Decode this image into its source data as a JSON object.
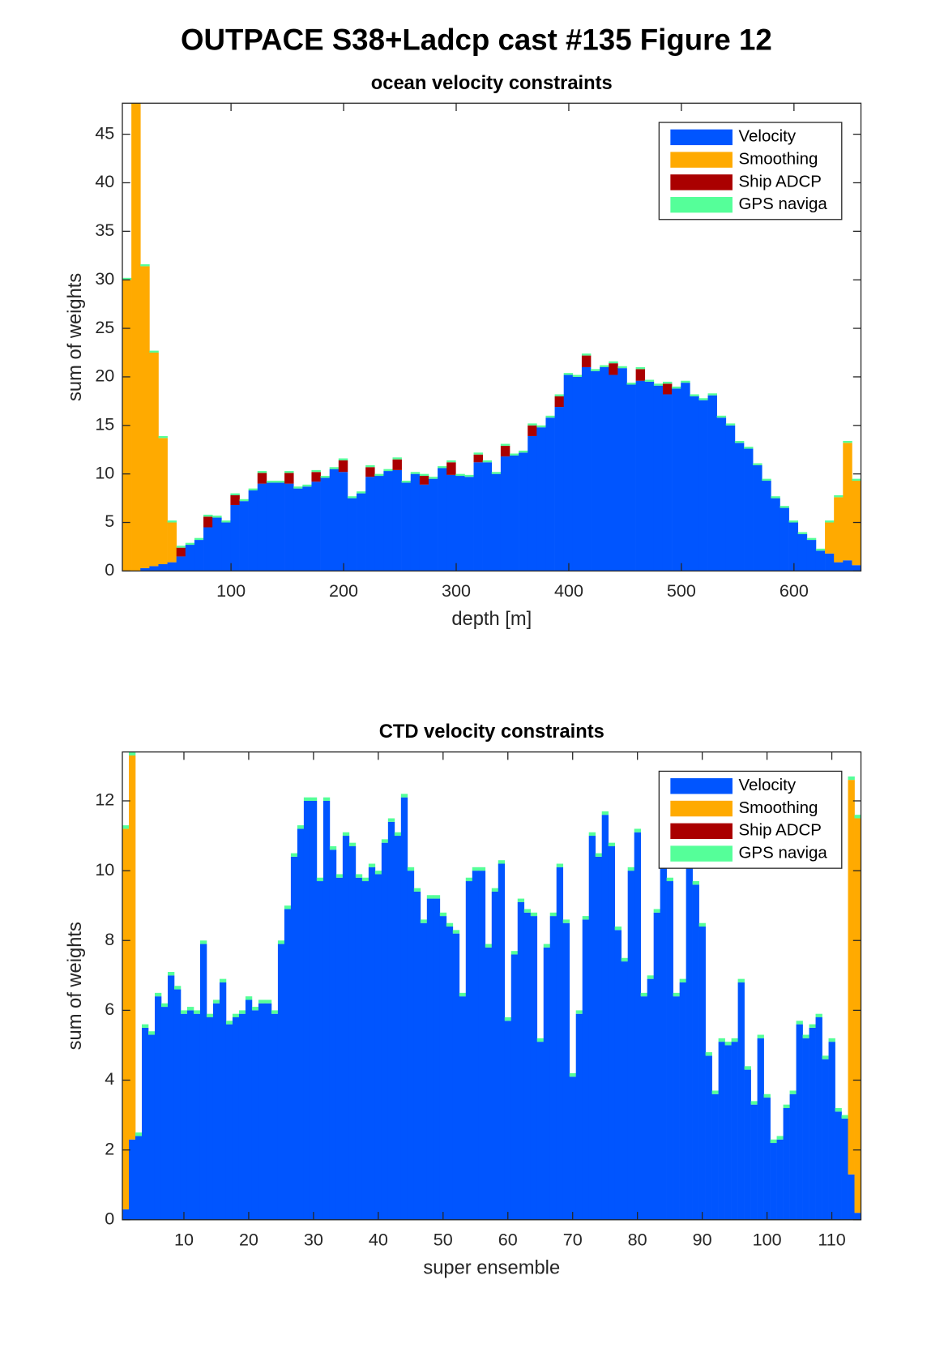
{
  "title": "OUTPACE S38+Ladcp cast #135  Figure 12",
  "chart_data": [
    {
      "type": "bar",
      "stacked": true,
      "title": "ocean velocity constraints",
      "x_label": "depth [m]",
      "y_label": "sum of weights",
      "x": [
        7.5,
        15.5,
        23.5,
        31.5,
        39.5,
        47.5,
        55.5,
        63.5,
        71.5,
        79.5,
        87.5,
        95.5,
        103.5,
        111.5,
        119.5,
        127.5,
        135.5,
        143.5,
        151.5,
        159.5,
        167.5,
        175.5,
        183.5,
        191.5,
        199.5,
        207.5,
        215.5,
        223.5,
        231.5,
        239.5,
        247.5,
        255.5,
        263.5,
        271.5,
        279.5,
        287.5,
        295.5,
        303.5,
        311.5,
        319.5,
        327.5,
        335.5,
        343.5,
        351.5,
        359.5,
        367.5,
        375.5,
        383.5,
        391.5,
        399.5,
        407.5,
        415.5,
        423.5,
        431.5,
        439.5,
        447.5,
        455.5,
        463.5,
        471.5,
        479.5,
        487.5,
        495.5,
        503.5,
        511.5,
        519.5,
        527.5,
        535.5,
        543.5,
        551.5,
        559.5,
        567.5,
        575.5,
        583.5,
        591.5,
        599.5,
        607.5,
        615.5,
        623.5,
        631.5,
        639.5,
        647.5,
        655.5
      ],
      "series": [
        {
          "name": "Velocity",
          "color": "#0055ff",
          "values": [
            0,
            0,
            0.3,
            0.5,
            0.7,
            0.9,
            1.5,
            2.7,
            3.2,
            4.5,
            5.5,
            5.0,
            6.8,
            7.2,
            8.3,
            9.0,
            9.1,
            9.1,
            9.0,
            8.5,
            8.7,
            9.2,
            9.6,
            10.5,
            10.2,
            7.5,
            8.0,
            9.7,
            9.8,
            10.3,
            10.4,
            9.1,
            10.0,
            8.9,
            9.5,
            10.6,
            9.9,
            9.8,
            9.7,
            11.2,
            11.2,
            10.0,
            11.8,
            11.9,
            12.2,
            13.9,
            14.8,
            15.8,
            16.9,
            20.2,
            20.0,
            21.0,
            20.6,
            21.0,
            20.2,
            20.9,
            19.2,
            19.6,
            19.5,
            19.1,
            18.2,
            18.8,
            19.4,
            18.0,
            17.6,
            18.1,
            15.8,
            15.0,
            13.2,
            12.6,
            10.9,
            9.3,
            7.5,
            6.5,
            5.0,
            3.8,
            3.2,
            2.1,
            1.8,
            0.9,
            1.1,
            0.6
          ]
        },
        {
          "name": "Smoothing",
          "color": "#ffaa00",
          "values": [
            30,
            48.2,
            31.1,
            22.0,
            13.0,
            4.1,
            0,
            0,
            0,
            0,
            0,
            0,
            0,
            0,
            0,
            0,
            0,
            0,
            0,
            0,
            0,
            0,
            0,
            0,
            0,
            0,
            0,
            0,
            0,
            0,
            0,
            0,
            0,
            0,
            0,
            0,
            0,
            0,
            0,
            0,
            0,
            0,
            0,
            0,
            0,
            0,
            0,
            0,
            0,
            0,
            0,
            0,
            0,
            0,
            0,
            0,
            0,
            0,
            0,
            0,
            0,
            0,
            0,
            0,
            0,
            0,
            0,
            0,
            0,
            0,
            0,
            0,
            0,
            0,
            0,
            0,
            0,
            0,
            3.2,
            6.7,
            12.1,
            8.7
          ]
        },
        {
          "name": "Ship ADCP",
          "color": "#aa0000",
          "values": [
            0,
            0,
            0,
            0,
            0,
            0,
            0.9,
            0,
            0,
            1.1,
            0,
            0,
            1.0,
            0,
            0,
            1.1,
            0,
            0,
            1.1,
            0,
            0,
            1.0,
            0,
            0,
            1.2,
            0,
            0,
            1.0,
            0,
            0,
            1.1,
            0,
            0,
            0.9,
            0,
            0,
            1.3,
            0,
            0,
            0.8,
            0,
            0,
            1.1,
            0,
            0,
            1.1,
            0,
            0,
            1.1,
            0,
            0,
            1.2,
            0,
            0,
            1.2,
            0,
            0,
            1.2,
            0,
            0,
            1.1,
            0,
            0,
            0,
            0,
            0,
            0,
            0,
            0,
            0,
            0,
            0,
            0,
            0,
            0,
            0,
            0,
            0,
            0,
            0,
            0,
            0
          ]
        },
        {
          "name": "GPS naviga",
          "color": "#55ff99",
          "values": [
            0.2,
            0.2,
            0.2,
            0.2,
            0.2,
            0.2,
            0.2,
            0.2,
            0.2,
            0.2,
            0.2,
            0.2,
            0.2,
            0.2,
            0.2,
            0.2,
            0.2,
            0.2,
            0.2,
            0.2,
            0.2,
            0.2,
            0.2,
            0.2,
            0.2,
            0.2,
            0.2,
            0.2,
            0.2,
            0.2,
            0.2,
            0.2,
            0.2,
            0.2,
            0.2,
            0.2,
            0.2,
            0.2,
            0.2,
            0.2,
            0.2,
            0.2,
            0.2,
            0.2,
            0.2,
            0.2,
            0.2,
            0.2,
            0.2,
            0.2,
            0.2,
            0.2,
            0.2,
            0.2,
            0.2,
            0.2,
            0.2,
            0.2,
            0.2,
            0.2,
            0.2,
            0.2,
            0.2,
            0.2,
            0.2,
            0.2,
            0.2,
            0.2,
            0.2,
            0.2,
            0.2,
            0.2,
            0.2,
            0.2,
            0.2,
            0.2,
            0.2,
            0.2,
            0.2,
            0.2,
            0.2,
            0.2
          ]
        }
      ],
      "xlim": [
        3.5,
        659.5
      ],
      "xticks": [
        100,
        200,
        300,
        400,
        500,
        600
      ],
      "ylim": [
        0,
        48.2
      ],
      "yticks": [
        0,
        5,
        10,
        15,
        20,
        25,
        30,
        35,
        40,
        45
      ],
      "legend": "northeast"
    },
    {
      "type": "bar",
      "stacked": true,
      "title": "CTD velocity constraints",
      "x_label": "super ensemble",
      "y_label": "sum of weights",
      "x": [
        1,
        2,
        3,
        4,
        5,
        6,
        7,
        8,
        9,
        10,
        11,
        12,
        13,
        14,
        15,
        16,
        17,
        18,
        19,
        20,
        21,
        22,
        23,
        24,
        25,
        26,
        27,
        28,
        29,
        30,
        31,
        32,
        33,
        34,
        35,
        36,
        37,
        38,
        39,
        40,
        41,
        42,
        43,
        44,
        45,
        46,
        47,
        48,
        49,
        50,
        51,
        52,
        53,
        54,
        55,
        56,
        57,
        58,
        59,
        60,
        61,
        62,
        63,
        64,
        65,
        66,
        67,
        68,
        69,
        70,
        71,
        72,
        73,
        74,
        75,
        76,
        77,
        78,
        79,
        80,
        81,
        82,
        83,
        84,
        85,
        86,
        87,
        88,
        89,
        90,
        91,
        92,
        93,
        94,
        95,
        96,
        97,
        98,
        99,
        100,
        101,
        102,
        103,
        104,
        105,
        106,
        107,
        108,
        109,
        110,
        111,
        112,
        113,
        114
      ],
      "series": [
        {
          "name": "Velocity",
          "color": "#0055ff",
          "values": [
            0.3,
            2.3,
            2.4,
            5.5,
            5.3,
            6.4,
            6.1,
            7.0,
            6.6,
            5.9,
            6.0,
            5.9,
            7.9,
            5.8,
            6.2,
            6.8,
            5.6,
            5.8,
            5.9,
            6.3,
            6.0,
            6.2,
            6.2,
            5.9,
            7.9,
            8.9,
            10.4,
            11.2,
            12.0,
            12.0,
            9.7,
            12.0,
            10.6,
            9.8,
            11.0,
            10.7,
            9.8,
            9.7,
            10.1,
            9.9,
            10.8,
            11.4,
            11.0,
            12.1,
            10.0,
            9.4,
            8.5,
            9.2,
            9.2,
            8.7,
            8.4,
            8.2,
            6.4,
            9.7,
            10.0,
            10.0,
            7.8,
            9.4,
            10.2,
            5.7,
            7.6,
            9.1,
            8.8,
            8.7,
            5.1,
            7.8,
            8.7,
            10.1,
            8.5,
            4.1,
            5.9,
            8.6,
            11.0,
            10.4,
            11.6,
            10.7,
            8.3,
            7.4,
            10.0,
            11.1,
            6.4,
            6.9,
            8.8,
            10.2,
            9.7,
            6.4,
            6.8,
            10.2,
            9.6,
            8.4,
            4.7,
            3.6,
            5.1,
            5.0,
            5.1,
            6.8,
            4.3,
            3.3,
            5.2,
            3.5,
            2.2,
            2.3,
            3.2,
            3.6,
            5.6,
            5.2,
            5.5,
            5.8,
            4.6,
            5.1,
            3.1,
            2.9,
            1.3,
            0.2
          ]
        },
        {
          "name": "Smoothing",
          "color": "#ffaa00",
          "values": [
            10.9,
            11.0,
            0,
            0,
            0,
            0,
            0,
            0,
            0,
            0,
            0,
            0,
            0,
            0,
            0,
            0,
            0,
            0,
            0,
            0,
            0,
            0,
            0,
            0,
            0,
            0,
            0,
            0,
            0,
            0,
            0,
            0,
            0,
            0,
            0,
            0,
            0,
            0,
            0,
            0,
            0,
            0,
            0,
            0,
            0,
            0,
            0,
            0,
            0,
            0,
            0,
            0,
            0,
            0,
            0,
            0,
            0,
            0,
            0,
            0,
            0,
            0,
            0,
            0,
            0,
            0,
            0,
            0,
            0,
            0,
            0,
            0,
            0,
            0,
            0,
            0,
            0,
            0,
            0,
            0,
            0,
            0,
            0,
            0,
            0,
            0,
            0,
            0,
            0,
            0,
            0,
            0,
            0,
            0,
            0,
            0,
            0,
            0,
            0,
            0,
            0,
            0,
            0,
            0,
            0,
            0,
            0,
            0,
            0,
            0,
            0,
            0,
            11.3,
            11.3
          ]
        },
        {
          "name": "Ship ADCP",
          "color": "#aa0000",
          "values": [
            0,
            0,
            0,
            0,
            0,
            0,
            0,
            0,
            0,
            0,
            0,
            0,
            0,
            0,
            0,
            0,
            0,
            0,
            0,
            0,
            0,
            0,
            0,
            0,
            0,
            0,
            0,
            0,
            0,
            0,
            0,
            0,
            0,
            0,
            0,
            0,
            0,
            0,
            0,
            0,
            0,
            0,
            0,
            0,
            0,
            0,
            0,
            0,
            0,
            0,
            0,
            0,
            0,
            0,
            0,
            0,
            0,
            0,
            0,
            0,
            0,
            0,
            0,
            0,
            0,
            0,
            0,
            0,
            0,
            0,
            0,
            0,
            0,
            0,
            0,
            0,
            0,
            0,
            0,
            0,
            0,
            0,
            0,
            0,
            0,
            0,
            0,
            0,
            0,
            0,
            0,
            0,
            0,
            0,
            0,
            0,
            0,
            0,
            0,
            0,
            0,
            0,
            0,
            0,
            0,
            0,
            0,
            0,
            0,
            0,
            0,
            0,
            0,
            0
          ]
        },
        {
          "name": "GPS naviga",
          "color": "#55ff99",
          "values": [
            0.1,
            0.1,
            0.1,
            0.1,
            0.1,
            0.1,
            0.1,
            0.1,
            0.1,
            0.1,
            0.1,
            0.1,
            0.1,
            0.1,
            0.1,
            0.1,
            0.1,
            0.1,
            0.1,
            0.1,
            0.1,
            0.1,
            0.1,
            0.1,
            0.1,
            0.1,
            0.1,
            0.1,
            0.1,
            0.1,
            0.1,
            0.1,
            0.1,
            0.1,
            0.1,
            0.1,
            0.1,
            0.1,
            0.1,
            0.1,
            0.1,
            0.1,
            0.1,
            0.1,
            0.1,
            0.1,
            0.1,
            0.1,
            0.1,
            0.1,
            0.1,
            0.1,
            0.1,
            0.1,
            0.1,
            0.1,
            0.1,
            0.1,
            0.1,
            0.1,
            0.1,
            0.1,
            0.1,
            0.1,
            0.1,
            0.1,
            0.1,
            0.1,
            0.1,
            0.1,
            0.1,
            0.1,
            0.1,
            0.1,
            0.1,
            0.1,
            0.1,
            0.1,
            0.1,
            0.1,
            0.1,
            0.1,
            0.1,
            0.1,
            0.1,
            0.1,
            0.1,
            0.1,
            0.1,
            0.1,
            0.1,
            0.1,
            0.1,
            0.1,
            0.1,
            0.1,
            0.1,
            0.1,
            0.1,
            0.1,
            0.1,
            0.1,
            0.1,
            0.1,
            0.1,
            0.1,
            0.1,
            0.1,
            0.1,
            0.1,
            0.1,
            0.1,
            0.1,
            0.1
          ]
        }
      ],
      "xlim": [
        0.5,
        114.5
      ],
      "xticks": [
        10,
        20,
        30,
        40,
        50,
        60,
        70,
        80,
        90,
        100,
        110
      ],
      "ylim": [
        0,
        13.4
      ],
      "yticks": [
        0,
        2,
        4,
        6,
        8,
        10,
        12
      ],
      "legend": "northeast"
    }
  ]
}
